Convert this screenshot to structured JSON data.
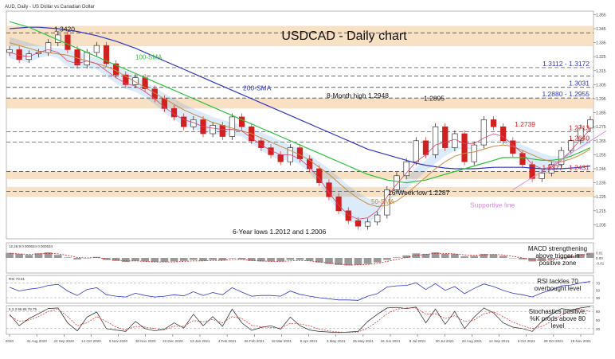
{
  "header": {
    "instrument": "AUD, Daily - US Dollar vs Canadian Dollar"
  },
  "colors": {
    "candle_up": "#1a1a1a",
    "candle_down": "#d22020",
    "sma20": "#e0406a",
    "sma50": "#c88c3c",
    "sma100": "#2ec23a",
    "sma200": "#2e36c4",
    "ichimoku": "#3a8fe0",
    "band": "#f5d6b0",
    "dashed": "#333333",
    "support": "#d488dc",
    "macd_hist": "#9a9a9a",
    "macd_line": "#222222",
    "rsi": "#2e36c4",
    "stoch_k": "#222222",
    "stoch_d": "#d22020"
  },
  "chart_data": {
    "type": "candlestick",
    "title": "USDCAD - Daily chart",
    "x_ticks": [
      "2020",
      "31 Aug 2020",
      "22 Sep 2020",
      "14 Oct 2020",
      "9 Nov 2020",
      "30 Nov 2020",
      "22 Dec 2020",
      "13 Jan 2021",
      "4 Feb 2021",
      "26 Feb 2021",
      "18 Mar 2021",
      "9 Apr 2021",
      "3 May 2021",
      "25 May 2021",
      "16 Jun 2021",
      "8 Jul 2021",
      "30 Jul 2021",
      "23 Aug 2021",
      "14 Sep 2021",
      "5 Oct 2021",
      "28 Oct 2021",
      "19 Nov 2021"
    ],
    "ylim": [
      1.195,
      1.3575
    ],
    "y_ticks": [
      {
        "label": "1.355",
        "value": 1.355
      },
      {
        "label": "1.345",
        "value": 1.345
      },
      {
        "label": "1.335",
        "value": 1.335
      },
      {
        "label": "1.325",
        "value": 1.325
      },
      {
        "label": "1.315",
        "value": 1.315
      },
      {
        "label": "1.305",
        "value": 1.305
      },
      {
        "label": "1.295",
        "value": 1.295
      },
      {
        "label": "1.285",
        "value": 1.285
      },
      {
        "label": "1.275",
        "value": 1.275
      },
      {
        "label": "1.265",
        "value": 1.265
      },
      {
        "label": "1.255",
        "value": 1.255
      },
      {
        "label": "1.245",
        "value": 1.245
      },
      {
        "label": "1.235",
        "value": 1.235
      },
      {
        "label": "1.225",
        "value": 1.225
      },
      {
        "label": "1.215",
        "value": 1.215
      },
      {
        "label": "1.205",
        "value": 1.205
      }
    ],
    "close_path": [
      1.33,
      1.323,
      1.327,
      1.328,
      1.335,
      1.3405,
      1.33,
      1.319,
      1.328,
      1.333,
      1.32,
      1.312,
      1.305,
      1.31,
      1.302,
      1.295,
      1.288,
      1.282,
      1.275,
      1.28,
      1.27,
      1.276,
      1.268,
      1.282,
      1.275,
      1.265,
      1.26,
      1.255,
      1.25,
      1.26,
      1.252,
      1.245,
      1.235,
      1.225,
      1.215,
      1.208,
      1.204,
      1.207,
      1.212,
      1.23,
      1.24,
      1.25,
      1.265,
      1.255,
      1.275,
      1.26,
      1.27,
      1.25,
      1.262,
      1.28,
      1.275,
      1.265,
      1.256,
      1.248,
      1.238,
      1.242,
      1.248,
      1.258,
      1.265,
      1.274,
      1.28
    ],
    "sma_20": [
      1.328,
      1.326,
      1.325,
      1.328,
      1.33,
      1.328,
      1.322,
      1.32,
      1.322,
      1.32,
      1.315,
      1.31,
      1.306,
      1.304,
      1.3,
      1.295,
      1.289,
      1.284,
      1.28,
      1.278,
      1.275,
      1.274,
      1.273,
      1.273,
      1.272,
      1.267,
      1.262,
      1.258,
      1.255,
      1.255,
      1.252,
      1.246,
      1.238,
      1.228,
      1.219,
      1.212,
      1.209,
      1.21,
      1.215,
      1.225,
      1.234,
      1.242,
      1.25,
      1.255,
      1.262,
      1.264,
      1.266,
      1.263,
      1.263,
      1.267,
      1.27,
      1.268,
      1.262,
      1.256,
      1.248,
      1.245,
      1.246,
      1.251,
      1.258,
      1.266,
      1.273
    ],
    "sma_50": [
      1.335,
      1.333,
      1.331,
      1.329,
      1.328,
      1.327,
      1.326,
      1.324,
      1.322,
      1.32,
      1.318,
      1.315,
      1.311,
      1.307,
      1.303,
      1.299,
      1.295,
      1.291,
      1.287,
      1.284,
      1.281,
      1.278,
      1.276,
      1.274,
      1.272,
      1.27,
      1.267,
      1.264,
      1.261,
      1.258,
      1.255,
      1.251,
      1.246,
      1.241,
      1.235,
      1.229,
      1.224,
      1.22,
      1.218,
      1.219,
      1.222,
      1.227,
      1.233,
      1.239,
      1.245,
      1.25,
      1.254,
      1.256,
      1.257,
      1.259,
      1.261,
      1.262,
      1.261,
      1.258,
      1.255,
      1.252,
      1.25,
      1.25,
      1.252,
      1.255,
      1.259
    ],
    "sma_100": [
      1.35,
      1.348,
      1.346,
      1.343,
      1.34,
      1.337,
      1.334,
      1.331,
      1.328,
      1.325,
      1.322,
      1.319,
      1.316,
      1.313,
      1.31,
      1.307,
      1.304,
      1.301,
      1.298,
      1.295,
      1.292,
      1.289,
      1.286,
      1.283,
      1.28,
      1.277,
      1.274,
      1.271,
      1.268,
      1.265,
      1.262,
      1.259,
      1.256,
      1.253,
      1.25,
      1.247,
      1.244,
      1.241,
      1.239,
      1.237,
      1.236,
      1.235,
      1.236,
      1.237,
      1.239,
      1.241,
      1.243,
      1.245,
      1.247,
      1.249,
      1.251,
      1.253,
      1.253,
      1.253,
      1.252,
      1.251,
      1.251,
      1.252,
      1.254,
      1.257,
      1.26
    ],
    "sma_200": [
      1.345,
      1.3455,
      1.346,
      1.346,
      1.3455,
      1.345,
      1.344,
      1.343,
      1.3415,
      1.34,
      1.338,
      1.336,
      1.3335,
      1.331,
      1.328,
      1.325,
      1.322,
      1.319,
      1.316,
      1.313,
      1.31,
      1.307,
      1.304,
      1.301,
      1.298,
      1.295,
      1.292,
      1.289,
      1.286,
      1.283,
      1.28,
      1.277,
      1.274,
      1.271,
      1.268,
      1.265,
      1.262,
      1.259,
      1.257,
      1.255,
      1.253,
      1.251,
      1.249,
      1.2475,
      1.2465,
      1.2455,
      1.245,
      1.245,
      1.245,
      1.2455,
      1.246,
      1.246,
      1.246,
      1.246,
      1.2455,
      1.245,
      1.245,
      1.245,
      1.2455,
      1.246,
      1.247
    ],
    "levels": [
      {
        "label": "1.3420",
        "value": 1.342,
        "style": "band",
        "span": [
          1.3325,
          1.347
        ]
      },
      {
        "label": "1.3112 - 1.3172",
        "value": 1.3172,
        "style": "dashed"
      },
      {
        "label": "",
        "value": 1.3112,
        "style": "dashed"
      },
      {
        "label": "1.3031",
        "value": 1.3031,
        "style": "dashed"
      },
      {
        "label": "1.2880 - 1.2955",
        "value": 1.2955,
        "style": "band",
        "span": [
          1.288,
          1.2955
        ]
      },
      {
        "label": "1.2739",
        "value": 1.2739,
        "style": "none"
      },
      {
        "label": "1.2713",
        "value": 1.2713,
        "style": "dashed"
      },
      {
        "label": "1.2640",
        "value": 1.264,
        "style": "dashed"
      },
      {
        "label": "1.2377 - 1.2431",
        "value": 1.2431,
        "style": "band",
        "span": [
          1.2377,
          1.2431
        ]
      },
      {
        "label": "",
        "value": 1.2287,
        "style": "band",
        "span": [
          1.225,
          1.232
        ]
      }
    ],
    "annotations": [
      {
        "label": "100-SMA"
      },
      {
        "label": "200-SMA"
      },
      {
        "label": "8-Month high 1.2948"
      },
      {
        "label": "1.2895"
      },
      {
        "label": "16-Week low 1.2287"
      },
      {
        "label": "Supportive line"
      },
      {
        "label": "50-SMA"
      },
      {
        "label": "6-Year lows 1.2012 and 1.2006"
      }
    ],
    "panels": [
      {
        "name": "macd",
        "header": "12,26,9 0.000634 0.000534",
        "note": "MACD strengthening above trigger in positive zone",
        "ylim": [
          -0.03,
          0.03
        ],
        "y_ticks": [
          {
            "label": "0.01",
            "value": 0.01
          },
          {
            "label": "0.00",
            "value": 0.0
          },
          {
            "label": "-0.01",
            "value": -0.01
          }
        ],
        "histogram": [
          0.01,
          0.008,
          0.006,
          0.009,
          0.011,
          0.006,
          0.001,
          -0.003,
          0.0,
          0.002,
          -0.004,
          -0.006,
          -0.008,
          -0.006,
          -0.007,
          -0.008,
          -0.008,
          -0.007,
          -0.006,
          -0.004,
          -0.006,
          -0.004,
          -0.005,
          -0.001,
          -0.003,
          -0.006,
          -0.007,
          -0.007,
          -0.007,
          -0.004,
          -0.004,
          -0.006,
          -0.009,
          -0.012,
          -0.014,
          -0.015,
          -0.014,
          -0.012,
          -0.009,
          -0.004,
          0.001,
          0.005,
          0.009,
          0.008,
          0.011,
          0.008,
          0.008,
          0.003,
          0.004,
          0.008,
          0.007,
          0.004,
          0.0,
          -0.003,
          -0.007,
          -0.006,
          -0.003,
          0.001,
          0.004,
          0.008,
          0.01
        ],
        "line": [
          0.009,
          0.008,
          0.007,
          0.008,
          0.009,
          0.008,
          0.005,
          0.001,
          0.0,
          0.001,
          -0.002,
          -0.004,
          -0.006,
          -0.006,
          -0.007,
          -0.008,
          -0.008,
          -0.008,
          -0.007,
          -0.006,
          -0.006,
          -0.005,
          -0.005,
          -0.003,
          -0.003,
          -0.005,
          -0.006,
          -0.007,
          -0.007,
          -0.006,
          -0.005,
          -0.006,
          -0.008,
          -0.01,
          -0.012,
          -0.014,
          -0.014,
          -0.013,
          -0.011,
          -0.007,
          -0.003,
          0.001,
          0.005,
          0.007,
          0.009,
          0.009,
          0.008,
          0.006,
          0.005,
          0.006,
          0.007,
          0.006,
          0.003,
          0.0,
          -0.004,
          -0.005,
          -0.004,
          -0.001,
          0.002,
          0.005,
          0.008
        ]
      },
      {
        "name": "rsi",
        "header": "RSI 73.61",
        "note": "RSI tackles 70 overbought level",
        "ylim": [
          15,
          90
        ],
        "y_ticks": [
          {
            "label": "70",
            "value": 70
          },
          {
            "label": "50",
            "value": 50
          },
          {
            "label": "30",
            "value": 30
          }
        ],
        "levels": [
          70,
          30
        ],
        "line": [
          58,
          48,
          53,
          56,
          63,
          66,
          48,
          36,
          52,
          57,
          38,
          34,
          32,
          42,
          36,
          32,
          34,
          38,
          35,
          46,
          36,
          44,
          38,
          57,
          45,
          34,
          36,
          36,
          34,
          48,
          39,
          34,
          30,
          27,
          24,
          24,
          23,
          34,
          41,
          59,
          62,
          63,
          70,
          52,
          68,
          50,
          60,
          41,
          55,
          67,
          60,
          50,
          42,
          38,
          32,
          43,
          51,
          62,
          64,
          70,
          73.6
        ]
      },
      {
        "name": "stochastics",
        "header": "5,3,3 96.95 79.79",
        "note": "Stochastics positive, %K prods above 80 level",
        "ylim": [
          0,
          100
        ],
        "y_ticks": [
          {
            "label": "80",
            "value": 80
          },
          {
            "label": "50",
            "value": 50
          },
          {
            "label": "20",
            "value": 20
          }
        ],
        "levels": [
          80,
          20
        ],
        "k": [
          70,
          30,
          55,
          72,
          90,
          92,
          40,
          12,
          60,
          78,
          20,
          15,
          10,
          45,
          20,
          12,
          18,
          40,
          22,
          70,
          30,
          62,
          28,
          88,
          40,
          14,
          24,
          30,
          18,
          60,
          30,
          15,
          10,
          8,
          6,
          8,
          10,
          45,
          70,
          92,
          94,
          90,
          95,
          40,
          88,
          35,
          80,
          20,
          60,
          92,
          75,
          40,
          25,
          20,
          10,
          45,
          70,
          90,
          85,
          92,
          97
        ],
        "d": [
          65,
          45,
          50,
          62,
          80,
          88,
          62,
          30,
          40,
          62,
          45,
          25,
          15,
          28,
          25,
          20,
          16,
          28,
          28,
          48,
          44,
          52,
          40,
          62,
          55,
          32,
          26,
          24,
          22,
          38,
          36,
          30,
          18,
          12,
          8,
          7,
          8,
          22,
          45,
          72,
          88,
          92,
          92,
          70,
          72,
          55,
          65,
          45,
          50,
          72,
          78,
          62,
          42,
          30,
          20,
          28,
          45,
          68,
          82,
          88,
          80
        ]
      }
    ]
  }
}
